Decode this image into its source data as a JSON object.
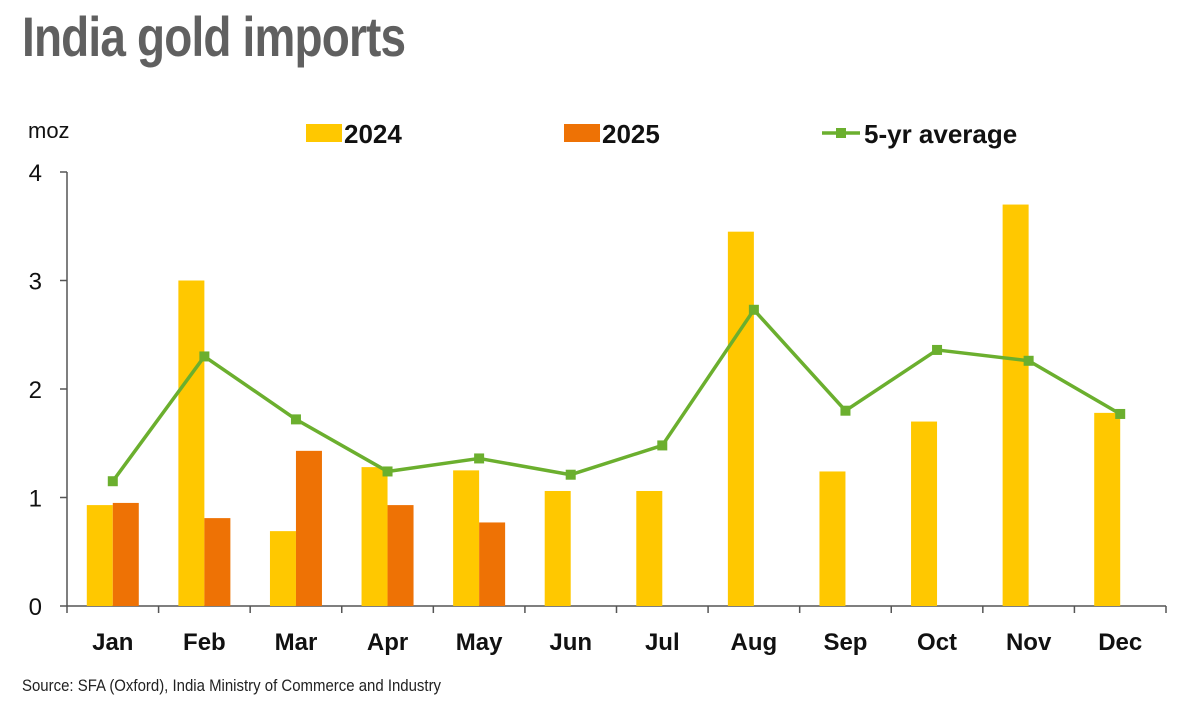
{
  "title": "India gold imports",
  "source": "Source: SFA (Oxford), India Ministry of Commerce and Industry",
  "colors": {
    "s2024": "#FFC800",
    "s2025": "#EE7205",
    "avg": "#6BAF2E",
    "axis": "#555555",
    "text": "#111111"
  },
  "chart_data": {
    "type": "bar",
    "ylabel": "moz",
    "ylim": [
      0,
      4
    ],
    "yticks": [
      "0",
      "1",
      "2",
      "3",
      "4"
    ],
    "grid": false,
    "legend_position": "top",
    "categories": [
      "Jan",
      "Feb",
      "Mar",
      "Apr",
      "May",
      "Jun",
      "Jul",
      "Aug",
      "Sep",
      "Oct",
      "Nov",
      "Dec"
    ],
    "series": [
      {
        "name": "2024",
        "type": "bar",
        "values": [
          0.93,
          3.0,
          0.69,
          1.28,
          1.25,
          1.06,
          1.06,
          3.45,
          1.24,
          1.7,
          3.7,
          1.78
        ]
      },
      {
        "name": "2025",
        "type": "bar",
        "values": [
          0.95,
          0.81,
          1.43,
          0.93,
          0.77,
          null,
          null,
          null,
          null,
          null,
          null,
          null
        ]
      },
      {
        "name": "5-yr average",
        "type": "line",
        "values": [
          1.15,
          2.3,
          1.72,
          1.24,
          1.36,
          1.21,
          1.48,
          2.73,
          1.8,
          2.36,
          2.26,
          1.77
        ]
      }
    ]
  }
}
